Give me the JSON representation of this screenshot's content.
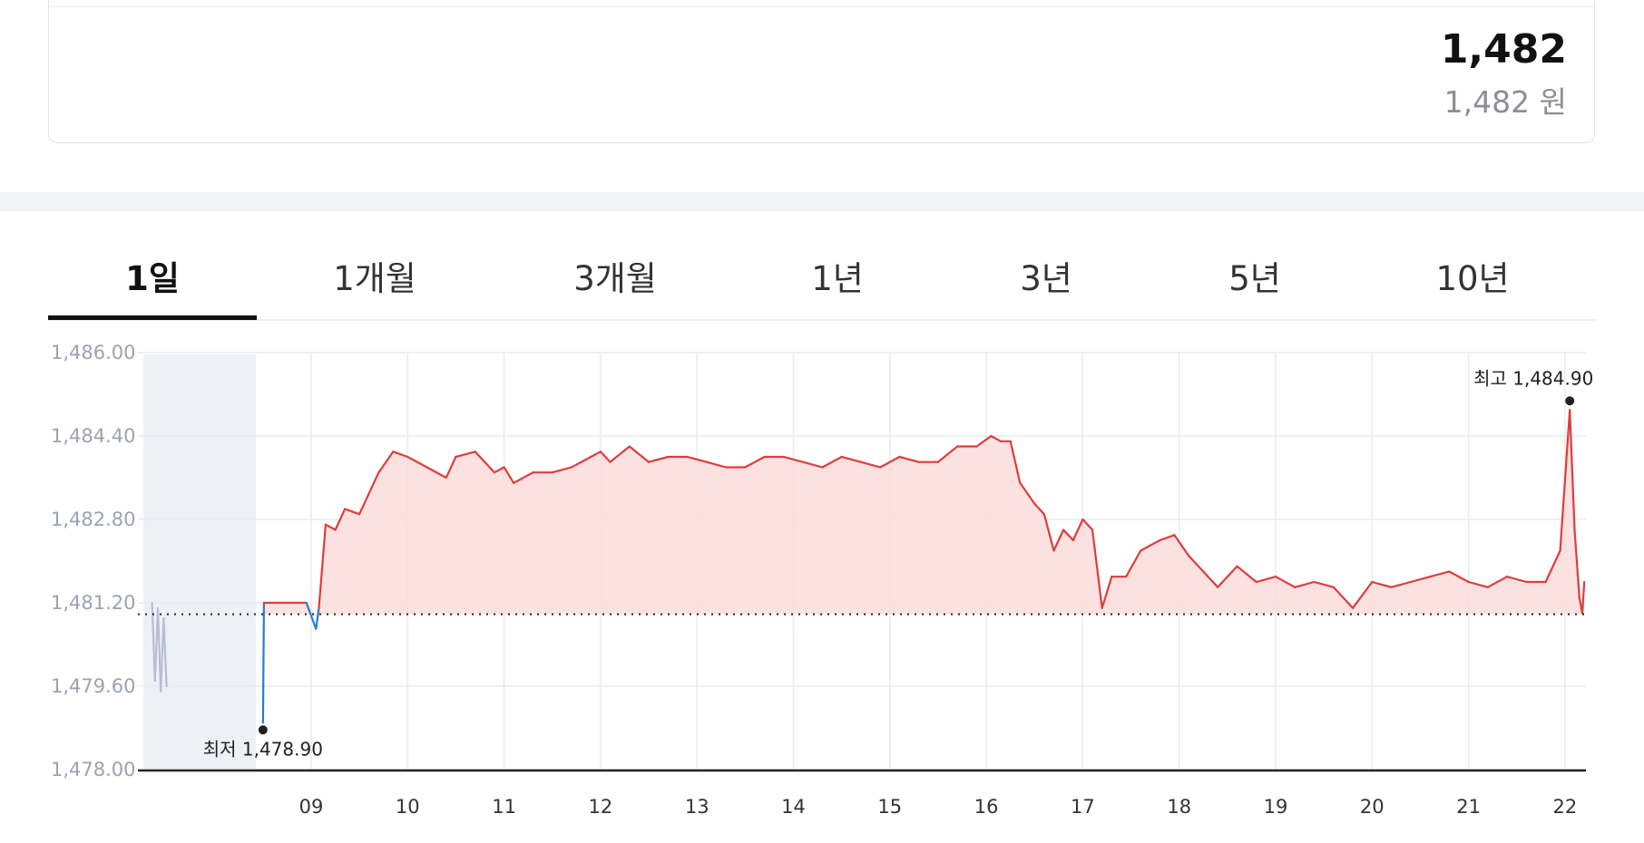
{
  "quote": {
    "price": "1,482",
    "price_won": "1,482 원"
  },
  "period_tabs": [
    "1일",
    "1개월",
    "3개월",
    "1년",
    "3년",
    "5년",
    "10년"
  ],
  "active_tab": "1일",
  "colors": {
    "up": "#e03c3c",
    "down": "#2b7dc8",
    "fill": "#fbdcdc",
    "grid": "#e9ebef",
    "premarket": "#eef0f7"
  },
  "chart_data": {
    "type": "line",
    "y_ticks": [
      "1,486.00",
      "1,484.40",
      "1,482.80",
      "1,481.20",
      "1,479.60",
      "1,478.00"
    ],
    "ylim": [
      1478.0,
      1486.0
    ],
    "x_ticks": [
      "09",
      "10",
      "11",
      "12",
      "13",
      "14",
      "15",
      "16",
      "17",
      "18",
      "19",
      "20",
      "21",
      "22"
    ],
    "reference_price": 1480.98,
    "annotations": {
      "high": {
        "label": "최고 1,484.90",
        "value": 1484.9,
        "time": 22.05
      },
      "low": {
        "label": "최저 1,478.90",
        "value": 1478.9,
        "time": 8.5
      }
    },
    "series": [
      {
        "points": [
          [
            7.35,
            1481.2
          ],
          [
            7.38,
            1479.7
          ],
          [
            7.41,
            1481.1
          ],
          [
            7.44,
            1479.5
          ],
          [
            7.47,
            1480.9
          ],
          [
            7.5,
            1479.6
          ],
          [
            8.5,
            1478.9
          ],
          [
            8.51,
            1481.2
          ],
          [
            8.95,
            1481.2
          ],
          [
            9.05,
            1480.7
          ],
          [
            9.08,
            1481.1
          ],
          [
            9.15,
            1482.7
          ],
          [
            9.25,
            1482.6
          ],
          [
            9.35,
            1483.0
          ],
          [
            9.5,
            1482.9
          ],
          [
            9.7,
            1483.7
          ],
          [
            9.85,
            1484.1
          ],
          [
            10.0,
            1484.0
          ],
          [
            10.2,
            1483.8
          ],
          [
            10.4,
            1483.6
          ],
          [
            10.5,
            1484.0
          ],
          [
            10.7,
            1484.1
          ],
          [
            10.9,
            1483.7
          ],
          [
            11.0,
            1483.8
          ],
          [
            11.1,
            1483.5
          ],
          [
            11.3,
            1483.7
          ],
          [
            11.5,
            1483.7
          ],
          [
            11.7,
            1483.8
          ],
          [
            11.9,
            1484.0
          ],
          [
            12.0,
            1484.1
          ],
          [
            12.1,
            1483.9
          ],
          [
            12.3,
            1484.2
          ],
          [
            12.5,
            1483.9
          ],
          [
            12.7,
            1484.0
          ],
          [
            12.9,
            1484.0
          ],
          [
            13.1,
            1483.9
          ],
          [
            13.3,
            1483.8
          ],
          [
            13.5,
            1483.8
          ],
          [
            13.7,
            1484.0
          ],
          [
            13.9,
            1484.0
          ],
          [
            14.1,
            1483.9
          ],
          [
            14.3,
            1483.8
          ],
          [
            14.5,
            1484.0
          ],
          [
            14.7,
            1483.9
          ],
          [
            14.9,
            1483.8
          ],
          [
            15.1,
            1484.0
          ],
          [
            15.3,
            1483.9
          ],
          [
            15.5,
            1483.9
          ],
          [
            15.7,
            1484.2
          ],
          [
            15.9,
            1484.2
          ],
          [
            16.05,
            1484.4
          ],
          [
            16.15,
            1484.3
          ],
          [
            16.25,
            1484.3
          ],
          [
            16.35,
            1483.5
          ],
          [
            16.5,
            1483.1
          ],
          [
            16.6,
            1482.9
          ],
          [
            16.7,
            1482.2
          ],
          [
            16.8,
            1482.6
          ],
          [
            16.9,
            1482.4
          ],
          [
            17.0,
            1482.8
          ],
          [
            17.1,
            1482.6
          ],
          [
            17.2,
            1481.1
          ],
          [
            17.3,
            1481.7
          ],
          [
            17.45,
            1481.7
          ],
          [
            17.6,
            1482.2
          ],
          [
            17.8,
            1482.4
          ],
          [
            17.95,
            1482.5
          ],
          [
            18.1,
            1482.1
          ],
          [
            18.25,
            1481.8
          ],
          [
            18.4,
            1481.5
          ],
          [
            18.6,
            1481.9
          ],
          [
            18.8,
            1481.6
          ],
          [
            19.0,
            1481.7
          ],
          [
            19.2,
            1481.5
          ],
          [
            19.4,
            1481.6
          ],
          [
            19.6,
            1481.5
          ],
          [
            19.8,
            1481.1
          ],
          [
            20.0,
            1481.6
          ],
          [
            20.2,
            1481.5
          ],
          [
            20.4,
            1481.6
          ],
          [
            20.6,
            1481.7
          ],
          [
            20.8,
            1481.8
          ],
          [
            21.0,
            1481.6
          ],
          [
            21.2,
            1481.5
          ],
          [
            21.4,
            1481.7
          ],
          [
            21.6,
            1481.6
          ],
          [
            21.8,
            1481.6
          ],
          [
            21.95,
            1482.2
          ],
          [
            22.05,
            1484.9
          ],
          [
            22.1,
            1482.6
          ],
          [
            22.15,
            1481.3
          ],
          [
            22.18,
            1481.0
          ],
          [
            22.2,
            1481.6
          ]
        ]
      }
    ]
  }
}
